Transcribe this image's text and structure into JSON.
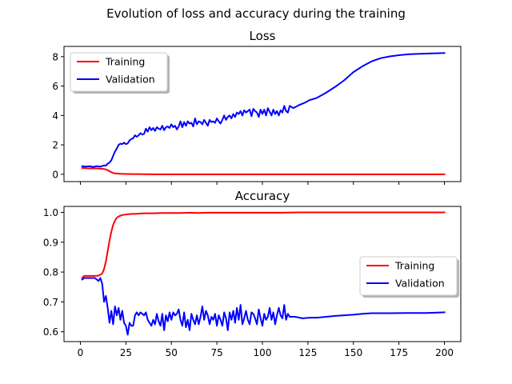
{
  "chart_data": {
    "suptitle": "Evolution of loss and accuracy during the training",
    "axes": [
      {
        "type": "line",
        "title": "Loss",
        "xlim": [
          -9,
          209
        ],
        "ylim": [
          -0.5,
          8.7
        ],
        "xticks": [
          0,
          25,
          50,
          75,
          100,
          125,
          150,
          175,
          200
        ],
        "xtick_labels_visible": false,
        "yticks": [
          0,
          2,
          4,
          6,
          8
        ],
        "ytick_labels": [
          "0",
          "2",
          "4",
          "6",
          "8"
        ],
        "legend": {
          "placement": "top-left"
        },
        "series": [
          {
            "name": "Training",
            "color": "#ff0000",
            "x": [
              1,
              3,
              5,
              8,
              10,
              12,
              14,
              15,
              16,
              17,
              18,
              19,
              20,
              22,
              25,
              30,
              40,
              60,
              80,
              100,
              125,
              150,
              175,
              200
            ],
            "y": [
              0.43,
              0.41,
              0.4,
              0.4,
              0.39,
              0.37,
              0.33,
              0.28,
              0.21,
              0.14,
              0.09,
              0.06,
              0.05,
              0.03,
              0.02,
              0.01,
              0.0,
              0.0,
              0.0,
              0.0,
              0.0,
              0.0,
              0.0,
              0.0
            ]
          },
          {
            "name": "Validation",
            "color": "#0000ff",
            "x": [
              1,
              3,
              5,
              7,
              9,
              11,
              13,
              14,
              15,
              16,
              17,
              18,
              19,
              20,
              21,
              22,
              23,
              24,
              25,
              26,
              27,
              28,
              29,
              30,
              31,
              32,
              33,
              34,
              35,
              36,
              37,
              38,
              39,
              40,
              41,
              42,
              43,
              44,
              45,
              46,
              47,
              48,
              49,
              50,
              51,
              52,
              53,
              54,
              55,
              56,
              57,
              58,
              59,
              60,
              61,
              62,
              63,
              64,
              65,
              66,
              67,
              68,
              69,
              70,
              71,
              72,
              73,
              74,
              75,
              76,
              77,
              78,
              79,
              80,
              81,
              82,
              83,
              84,
              85,
              86,
              87,
              88,
              89,
              90,
              91,
              92,
              93,
              94,
              95,
              96,
              97,
              98,
              99,
              100,
              101,
              102,
              103,
              104,
              105,
              106,
              107,
              108,
              109,
              110,
              111,
              112,
              113,
              114,
              115,
              117,
              120,
              123,
              126,
              130,
              135,
              140,
              145,
              150,
              155,
              160,
              165,
              170,
              175,
              180,
              185,
              190,
              195,
              200
            ],
            "y": [
              0.55,
              0.52,
              0.55,
              0.5,
              0.55,
              0.52,
              0.6,
              0.58,
              0.72,
              0.8,
              0.95,
              1.25,
              1.55,
              1.75,
              2.0,
              2.08,
              2.05,
              2.15,
              2.05,
              2.1,
              2.3,
              2.4,
              2.45,
              2.65,
              2.55,
              2.65,
              2.8,
              2.7,
              2.75,
              3.1,
              2.9,
              3.2,
              3.0,
              3.15,
              2.95,
              3.2,
              3.1,
              3.05,
              3.3,
              3.0,
              3.2,
              3.25,
              3.15,
              3.4,
              3.2,
              3.3,
              3.05,
              3.25,
              3.6,
              3.2,
              3.55,
              3.3,
              3.6,
              3.45,
              3.5,
              3.25,
              3.8,
              3.4,
              3.6,
              3.55,
              3.4,
              3.7,
              3.5,
              3.3,
              3.7,
              3.55,
              3.6,
              3.5,
              3.8,
              3.6,
              3.45,
              3.7,
              4.0,
              3.7,
              3.9,
              4.0,
              3.8,
              4.1,
              3.9,
              4.2,
              4.1,
              4.3,
              4.0,
              4.35,
              4.2,
              4.3,
              4.4,
              3.95,
              4.45,
              4.3,
              4.2,
              3.9,
              4.4,
              4.1,
              4.4,
              4.0,
              4.5,
              4.25,
              4.0,
              4.4,
              4.1,
              4.3,
              4.0,
              4.35,
              4.2,
              4.65,
              4.3,
              4.2,
              4.65,
              4.5,
              4.7,
              4.85,
              5.05,
              5.2,
              5.55,
              5.95,
              6.4,
              6.95,
              7.35,
              7.68,
              7.9,
              8.02,
              8.1,
              8.16,
              8.19,
              8.21,
              8.23,
              8.25
            ]
          }
        ]
      },
      {
        "type": "line",
        "title": "Accuracy",
        "xlim": [
          -9,
          209
        ],
        "ylim": [
          0.567,
          1.02
        ],
        "xticks": [
          0,
          25,
          50,
          75,
          100,
          125,
          150,
          175,
          200
        ],
        "xtick_labels": [
          "0",
          "25",
          "50",
          "75",
          "100",
          "125",
          "150",
          "175",
          "200"
        ],
        "yticks": [
          0.6,
          0.7,
          0.8,
          0.9,
          1.0
        ],
        "ytick_labels": [
          "0.6",
          "0.7",
          "0.8",
          "0.9",
          "1.0"
        ],
        "legend": {
          "placement": "center-right"
        },
        "series": [
          {
            "name": "Training",
            "color": "#ff0000",
            "x": [
              1,
              2,
              4,
              6,
              8,
              10,
              12,
              13,
              14,
              15,
              16,
              17,
              18,
              19,
              20,
              21,
              22,
              23,
              25,
              28,
              30,
              35,
              40,
              45,
              50,
              55,
              60,
              65,
              70,
              75,
              80,
              90,
              100,
              110,
              120,
              140,
              160,
              180,
              200
            ],
            "y": [
              0.78,
              0.787,
              0.787,
              0.787,
              0.787,
              0.788,
              0.795,
              0.81,
              0.835,
              0.87,
              0.905,
              0.935,
              0.958,
              0.972,
              0.982,
              0.986,
              0.989,
              0.991,
              0.993,
              0.995,
              0.995,
              0.997,
              0.997,
              0.998,
              0.998,
              0.998,
              0.999,
              0.998,
              0.999,
              0.999,
              0.999,
              0.999,
              0.999,
              0.999,
              1.0,
              1.0,
              1.0,
              1.0,
              1.0
            ]
          },
          {
            "name": "Validation",
            "color": "#0000ff",
            "x": [
              1,
              2,
              4,
              6,
              8,
              10,
              11,
              12,
              13,
              14,
              15,
              16,
              17,
              18,
              19,
              20,
              21,
              22,
              23,
              24,
              25,
              26,
              27,
              28,
              29,
              30,
              31,
              32,
              33,
              34,
              35,
              36,
              37,
              38,
              39,
              40,
              41,
              42,
              43,
              44,
              45,
              46,
              47,
              48,
              49,
              50,
              51,
              52,
              53,
              54,
              55,
              56,
              57,
              58,
              59,
              60,
              61,
              62,
              63,
              64,
              65,
              66,
              67,
              68,
              69,
              70,
              71,
              72,
              73,
              74,
              75,
              76,
              77,
              78,
              79,
              80,
              81,
              82,
              83,
              84,
              85,
              86,
              87,
              88,
              89,
              90,
              91,
              92,
              93,
              94,
              95,
              96,
              97,
              98,
              99,
              100,
              101,
              102,
              103,
              104,
              105,
              106,
              107,
              108,
              109,
              110,
              111,
              112,
              113,
              114,
              115,
              118,
              122,
              126,
              130,
              135,
              140,
              145,
              150,
              155,
              160,
              170,
              180,
              190,
              200
            ],
            "y": [
              0.775,
              0.78,
              0.78,
              0.78,
              0.78,
              0.77,
              0.78,
              0.76,
              0.7,
              0.72,
              0.68,
              0.63,
              0.67,
              0.625,
              0.685,
              0.655,
              0.68,
              0.64,
              0.67,
              0.63,
              0.62,
              0.59,
              0.63,
              0.62,
              0.62,
              0.655,
              0.665,
              0.655,
              0.665,
              0.66,
              0.655,
              0.665,
              0.64,
              0.63,
              0.62,
              0.64,
              0.625,
              0.66,
              0.635,
              0.62,
              0.66,
              0.605,
              0.655,
              0.635,
              0.665,
              0.64,
              0.665,
              0.655,
              0.66,
              0.675,
              0.64,
              0.62,
              0.665,
              0.615,
              0.64,
              0.605,
              0.66,
              0.64,
              0.625,
              0.655,
              0.625,
              0.65,
              0.685,
              0.64,
              0.67,
              0.655,
              0.625,
              0.65,
              0.64,
              0.66,
              0.62,
              0.655,
              0.64,
              0.62,
              0.665,
              0.645,
              0.605,
              0.665,
              0.64,
              0.67,
              0.63,
              0.68,
              0.64,
              0.69,
              0.625,
              0.645,
              0.67,
              0.64,
              0.625,
              0.665,
              0.66,
              0.645,
              0.625,
              0.675,
              0.645,
              0.62,
              0.66,
              0.64,
              0.65,
              0.68,
              0.64,
              0.665,
              0.625,
              0.655,
              0.68,
              0.655,
              0.645,
              0.69,
              0.64,
              0.66,
              0.65,
              0.65,
              0.645,
              0.647,
              0.647,
              0.65,
              0.653,
              0.655,
              0.657,
              0.66,
              0.662,
              0.662,
              0.663,
              0.663,
              0.665
            ]
          }
        ]
      }
    ]
  }
}
